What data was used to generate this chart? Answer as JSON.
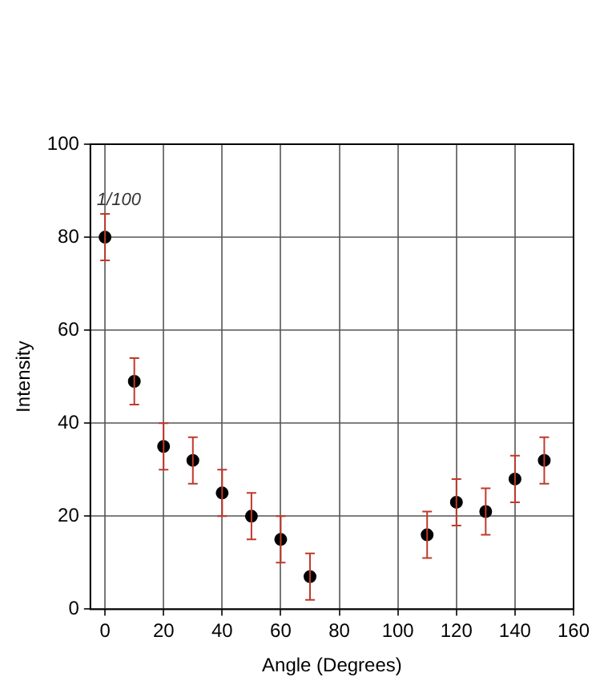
{
  "chart_data": {
    "type": "scatter",
    "xlabel": "Angle (Degrees)",
    "ylabel": "Intensity",
    "annotations": [
      "1/100"
    ],
    "x": [
      0,
      10,
      20,
      30,
      40,
      50,
      60,
      70,
      110,
      120,
      130,
      140,
      150
    ],
    "series": [
      {
        "color": "#000000",
        "values": [
          80,
          49,
          35,
          32,
          25,
          20,
          15,
          7,
          16,
          23,
          21,
          28,
          32
        ],
        "errors": [
          5,
          5,
          5,
          5,
          5,
          5,
          5,
          5,
          5,
          5,
          5,
          5,
          5
        ]
      }
    ],
    "xlim": [
      -5,
      160
    ],
    "xticks": [
      0,
      20,
      40,
      60,
      80,
      100,
      120,
      140,
      160
    ],
    "ylim": [
      0,
      100
    ],
    "yticks": [
      0,
      20,
      40,
      60,
      80,
      100
    ],
    "grid": true,
    "legend": false,
    "marker": "circle"
  }
}
